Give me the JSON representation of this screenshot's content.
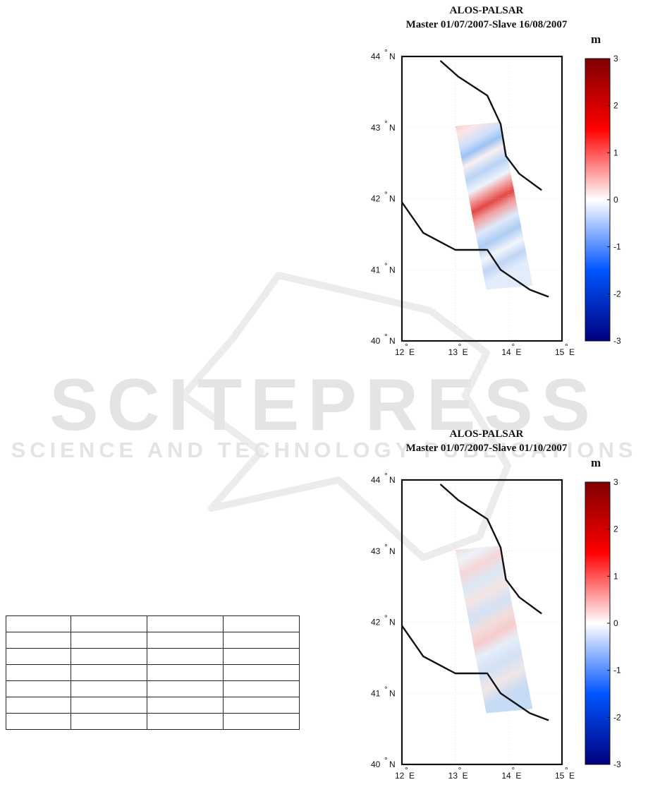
{
  "watermark": {
    "main": "SCITEPRESS",
    "sub": "SCIENCE AND TECHNOLOGY PUBLICATIONS"
  },
  "maps": [
    {
      "title": "ALOS-PALSAR",
      "subtitle": "Master 01/07/2007-Slave 16/08/2007",
      "unit": "m",
      "variant": "strong"
    },
    {
      "title": "ALOS-PALSAR",
      "subtitle": "Master 01/07/2007-Slave 01/10/2007",
      "unit": "m",
      "variant": "weak"
    }
  ],
  "axes": {
    "lat_labels": [
      "44",
      "43",
      "42",
      "41",
      "40"
    ],
    "lon_labels": [
      "12",
      "13",
      "14",
      "15"
    ],
    "lat_suffix": "N",
    "lon_suffix": "E",
    "lat_range": [
      40,
      44
    ],
    "lon_range": [
      12,
      15
    ]
  },
  "colorbar": {
    "ticks": [
      "3",
      "2",
      "1",
      "0",
      "-1",
      "-2",
      "-3"
    ],
    "range": [
      -3,
      3
    ],
    "colors": [
      "#7f0000",
      "#ff0000",
      "#ffffff",
      "#0055ff",
      "#00007f"
    ]
  },
  "coastline": {
    "northeast": [
      [
        12.72,
        43.94
      ],
      [
        13.05,
        43.72
      ],
      [
        13.6,
        43.45
      ],
      [
        13.85,
        43.05
      ],
      [
        13.95,
        42.6
      ],
      [
        14.2,
        42.35
      ],
      [
        14.62,
        42.12
      ]
    ],
    "southwest": [
      [
        12.0,
        41.95
      ],
      [
        12.4,
        41.52
      ],
      [
        13.0,
        41.28
      ],
      [
        13.6,
        41.28
      ],
      [
        13.85,
        41.0
      ],
      [
        14.4,
        40.72
      ],
      [
        14.75,
        40.62
      ]
    ]
  },
  "table": {
    "rows": 7,
    "cols": 4
  }
}
